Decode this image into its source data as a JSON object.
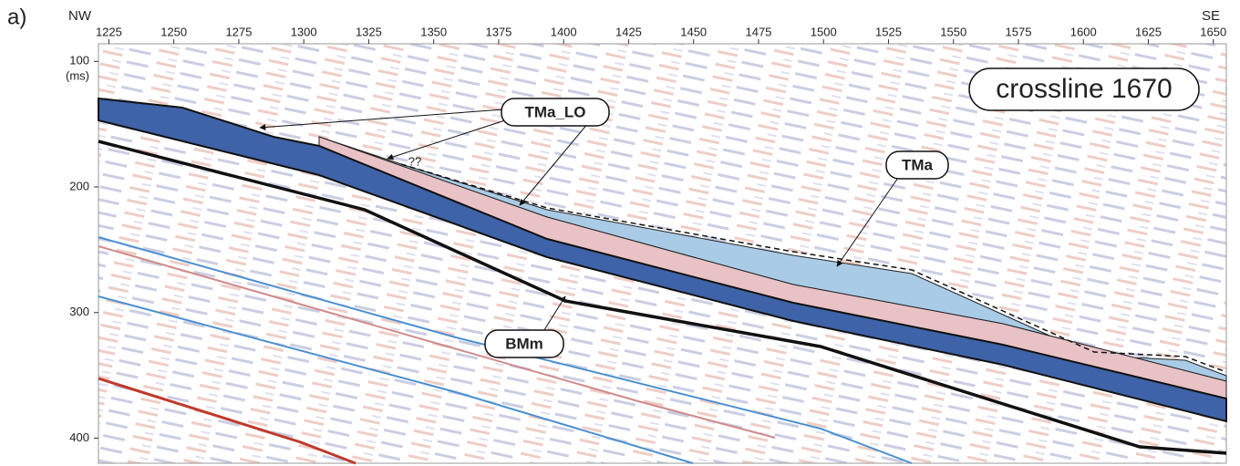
{
  "panel_label": "a)",
  "corner_labels": {
    "left": "NW",
    "right": "SE"
  },
  "x_axis": {
    "xlim": [
      1221,
      1655
    ],
    "xticks": [
      1225,
      1250,
      1275,
      1300,
      1325,
      1350,
      1375,
      1400,
      1425,
      1450,
      1475,
      1500,
      1525,
      1550,
      1575,
      1600,
      1625,
      1650
    ]
  },
  "y_axis": {
    "label": "(ms)",
    "ylim": [
      86,
      420
    ],
    "yticks": [
      100,
      200,
      300,
      400
    ]
  },
  "annotations": {
    "section": "crossline 1670",
    "horizon_1": "TMa_LO",
    "horizon_2": "TMa",
    "horizon_3": "BMm",
    "uncertain": "??"
  }
}
